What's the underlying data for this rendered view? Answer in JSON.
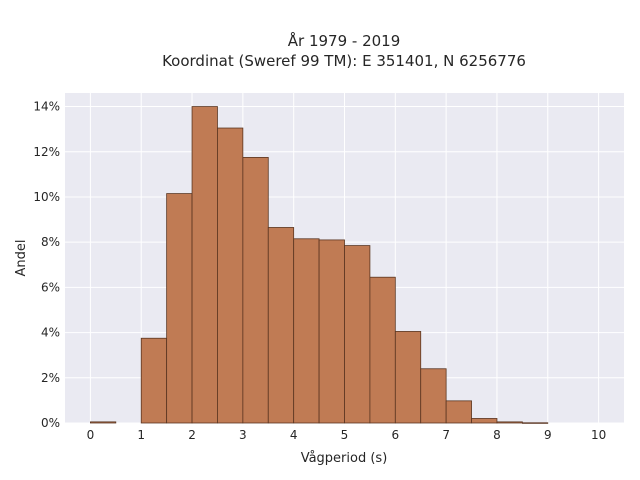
{
  "chart_data": {
    "type": "bar",
    "title_lines": [
      "År 1979 - 2019",
      "Koordinat (Sweref 99 TM): E 351401, N 6256776"
    ],
    "xlabel": "Vågperiod (s)",
    "ylabel": "Andel",
    "bin_width": 0.5,
    "bins": [
      {
        "x0": 0.0,
        "x1": 0.5,
        "value": 0.05
      },
      {
        "x0": 0.5,
        "x1": 1.0,
        "value": 0.0
      },
      {
        "x0": 1.0,
        "x1": 1.5,
        "value": 3.75
      },
      {
        "x0": 1.5,
        "x1": 2.0,
        "value": 10.15
      },
      {
        "x0": 2.0,
        "x1": 2.5,
        "value": 14.0
      },
      {
        "x0": 2.5,
        "x1": 3.0,
        "value": 13.05
      },
      {
        "x0": 3.0,
        "x1": 3.5,
        "value": 11.75
      },
      {
        "x0": 3.5,
        "x1": 4.0,
        "value": 8.65
      },
      {
        "x0": 4.0,
        "x1": 4.5,
        "value": 8.15
      },
      {
        "x0": 4.5,
        "x1": 5.0,
        "value": 8.1
      },
      {
        "x0": 5.0,
        "x1": 5.5,
        "value": 7.85
      },
      {
        "x0": 5.5,
        "x1": 6.0,
        "value": 6.45
      },
      {
        "x0": 6.0,
        "x1": 6.5,
        "value": 4.05
      },
      {
        "x0": 6.5,
        "x1": 7.0,
        "value": 2.4
      },
      {
        "x0": 7.0,
        "x1": 7.5,
        "value": 0.98
      },
      {
        "x0": 7.5,
        "x1": 8.0,
        "value": 0.2
      },
      {
        "x0": 8.0,
        "x1": 8.5,
        "value": 0.05
      },
      {
        "x0": 8.5,
        "x1": 9.0,
        "value": 0.01
      }
    ],
    "xlim": [
      -0.5,
      10.5
    ],
    "ylim": [
      0,
      14.6
    ],
    "xticks": [
      0,
      1,
      2,
      3,
      4,
      5,
      6,
      7,
      8,
      9,
      10
    ],
    "yticks": [
      0,
      2,
      4,
      6,
      8,
      10,
      12,
      14
    ],
    "ytick_labels": [
      "0%",
      "2%",
      "4%",
      "6%",
      "8%",
      "10%",
      "12%",
      "14%"
    ],
    "grid": true,
    "colors": {
      "bar_fill": "#c07b54",
      "bar_edge": "#5a3520",
      "plot_background": "#eaeaf2",
      "grid": "#ffffff",
      "text": "#262626"
    }
  }
}
